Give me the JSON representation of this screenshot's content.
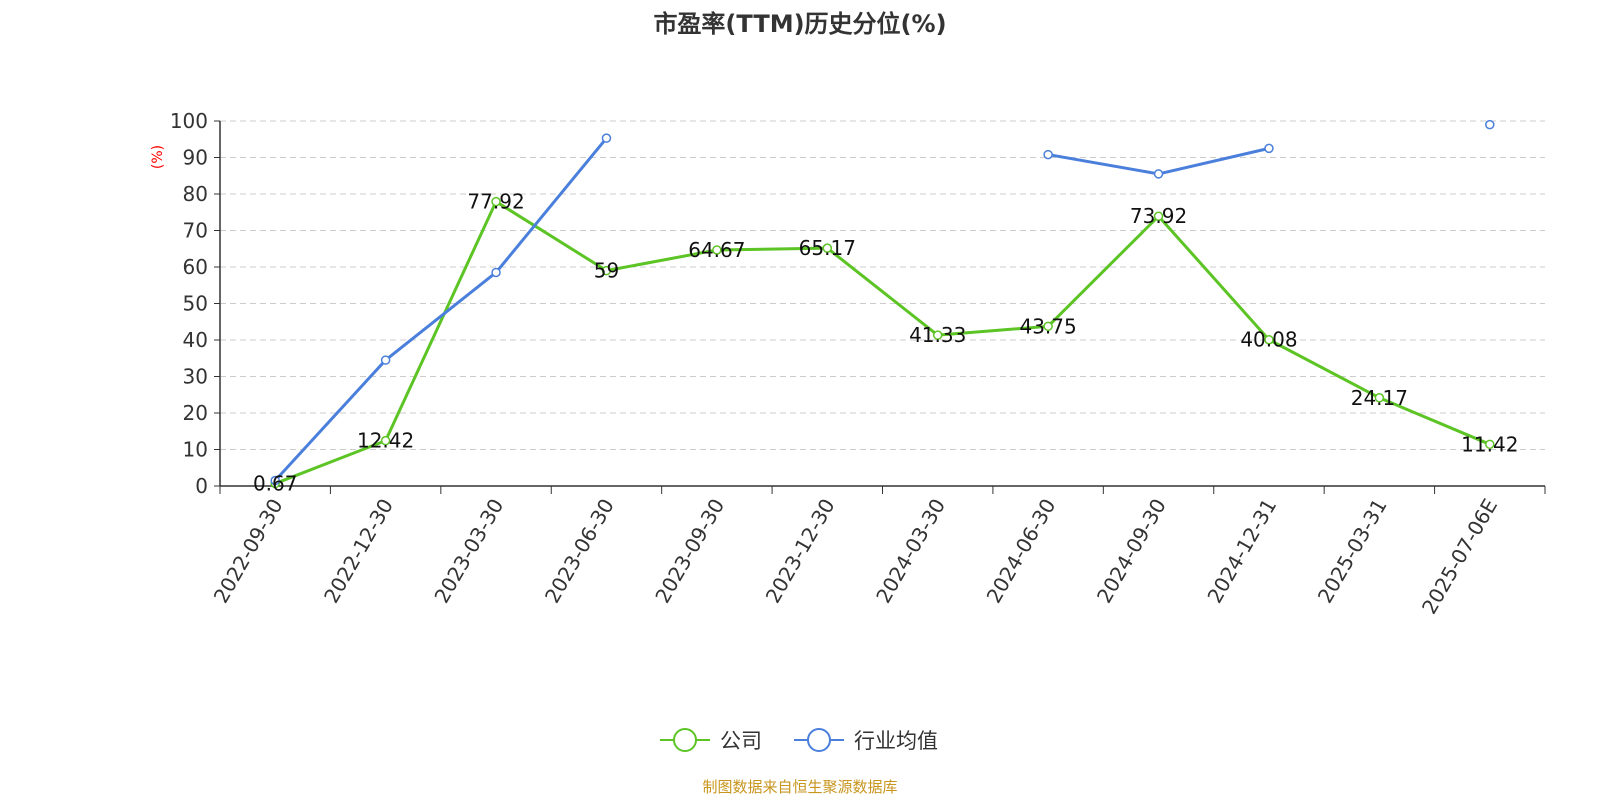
{
  "chart_data": {
    "type": "line",
    "title": "市盈率(TTM)历史分位(%)",
    "ylabel": "(%)",
    "xlabel": "",
    "ylim": [
      0,
      100
    ],
    "yticks": [
      0,
      10,
      20,
      30,
      40,
      50,
      60,
      70,
      80,
      90,
      100
    ],
    "grid": true,
    "legend_position": "bottom-center",
    "categories": [
      "2022-09-30",
      "2022-12-30",
      "2023-03-30",
      "2023-06-30",
      "2023-09-30",
      "2023-12-30",
      "2024-03-30",
      "2024-06-30",
      "2024-09-30",
      "2024-12-31",
      "2025-03-31",
      "2025-07-06E"
    ],
    "series": [
      {
        "name": "公司",
        "color": "#5cc424",
        "values": [
          0.67,
          12.42,
          77.92,
          59,
          64.67,
          65.17,
          41.33,
          43.75,
          73.92,
          40.08,
          24.17,
          11.42
        ],
        "labels": [
          "0.67",
          "12.42",
          "77.92",
          "59",
          "64.67",
          "65.17",
          "41.33",
          "43.75",
          "73.92",
          "40.08",
          "24.17",
          "11.42"
        ]
      },
      {
        "name": "行业均值",
        "color": "#4a7fdb",
        "values": [
          1.5,
          34.5,
          58.5,
          95.3,
          null,
          null,
          null,
          90.8,
          85.5,
          92.5,
          null,
          99
        ]
      }
    ],
    "source": "制图数据来自恒生聚源数据库"
  }
}
